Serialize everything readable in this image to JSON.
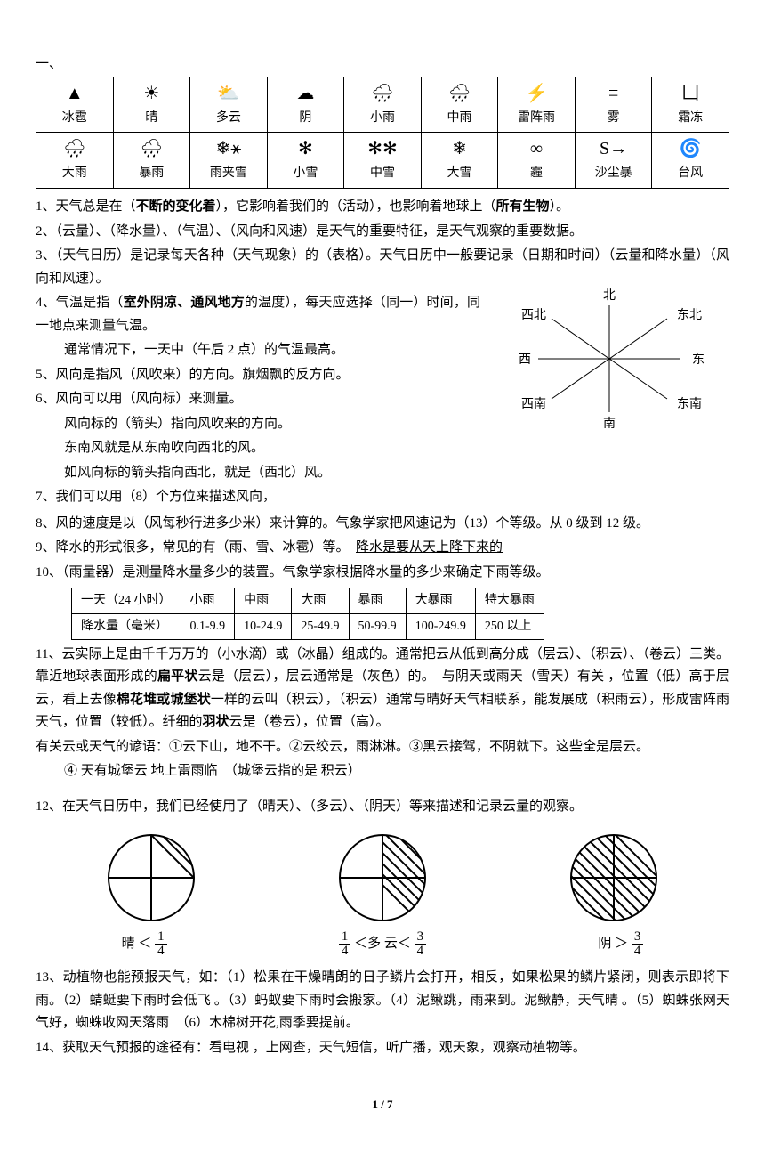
{
  "section_label": "一、",
  "weather_icons": [
    {
      "name": "hail",
      "glyph": "▲",
      "label": "冰雹"
    },
    {
      "name": "sunny",
      "glyph": "☀",
      "label": "晴"
    },
    {
      "name": "cloudy",
      "glyph": "⛅",
      "label": "多云"
    },
    {
      "name": "overcast",
      "glyph": "☁",
      "label": "阴"
    },
    {
      "name": "lightrain",
      "glyph": "🌧",
      "label": "小雨"
    },
    {
      "name": "modrain",
      "glyph": "🌧",
      "label": "中雨"
    },
    {
      "name": "tstorm",
      "glyph": "⚡",
      "label": "雷阵雨"
    },
    {
      "name": "fog",
      "glyph": "≡",
      "label": "雾"
    },
    {
      "name": "frost",
      "glyph": "凵",
      "label": "霜冻"
    },
    {
      "name": "heavyrain",
      "glyph": "🌧",
      "label": "大雨"
    },
    {
      "name": "storm",
      "glyph": "🌧",
      "label": "暴雨"
    },
    {
      "name": "sleet",
      "glyph": "❄⚹",
      "label": "雨夹雪"
    },
    {
      "name": "lightsnow",
      "glyph": "✻",
      "label": "小雪"
    },
    {
      "name": "modsnow",
      "glyph": "✻✻",
      "label": "中雪"
    },
    {
      "name": "heavysnow",
      "glyph": "❄",
      "label": "大雪"
    },
    {
      "name": "haze",
      "glyph": "∞",
      "label": "霾"
    },
    {
      "name": "sand",
      "glyph": "S→",
      "label": "沙尘暴"
    },
    {
      "name": "typhoon",
      "glyph": "🌀",
      "label": "台风"
    }
  ],
  "compass": {
    "n": "北",
    "ne": "东北",
    "e": "东",
    "se": "东南",
    "s": "南",
    "sw": "西南",
    "w": "西",
    "nw": "西北"
  },
  "points": {
    "p1": "1、天气总是在（",
    "p1b": "不断的变化着",
    "p1c": "），它影响着我们的（活动），也影响着地球上（",
    "p1d": "所有生物",
    "p1e": "）。",
    "p2": "2、（云量）、（降水量）、（气温）、（风向和风速）是天气的重要特征，是天气观察的重要数据。",
    "p3": "3、（天气日历）是记录每天各种（天气现象）的（表格）。天气日历中一般要记录（日期和时间）（云量和降水量）（风向和风速）。",
    "p4a": "4、气温是指（",
    "p4b": "室外阴凉、通风地方",
    "p4c": "的温度），每天应选择（同一）时间，同一地点来测量气温。",
    "p4d": "通常情况下，一天中（午后 2 点）的气温最高。",
    "p5": "5、风向是指风（风吹来）的方向。旗烟飘的反方向。",
    "p6a": "6、风向可以用（风向标）来测量。",
    "p6b": "风向标的（箭头）指向风吹来的方向。",
    "p6c": "东南风就是从东南吹向西北的风。",
    "p6d": "如风向标的箭头指向西北，就是（西北）风。",
    "p7": "7、我们可以用（8）个方位来描述风向，",
    "p8": "8、风的速度是以（风每秒行进多少米）来计算的。气象学家把风速记为（13）个等级。从 0 级到 12 级。",
    "p9a": "9、降水的形式很多，常见的有（雨、雪、冰雹）等。　",
    "p9b": "降水是要从天上降下来的",
    "p10": "10、（雨量器）是测量降水量多少的装置。气象学家根据降水量的多少来确定下雨等级。",
    "p11a": "11、云实际上是由千千万万的（小水滴）或（冰晶）组成的。通常把云从低到高分成（层云）、（积云）、（卷云）三类。靠近地球表面形成的",
    "p11b": "扁平状",
    "p11c": "云是（层云），层云通常是（灰色）的。　与阴天或雨天（雪天）有关 ，位置（低）高于层云，看上去像",
    "p11d": "棉花堆或城堡状",
    "p11e": "一样的云叫（积云），（积云）通常与晴好天气相联系，能发展成（积雨云），形成雷阵雨天气，位置（较低）。纤细的",
    "p11f": "羽状",
    "p11g": "云是（卷云），位置（高）。",
    "p11h": "有关云或天气的谚语：①云下山，地不干。②云绞云，雨淋淋。③黑云接驾，不阴就下。这些全是层云。",
    "p11i": "④ 天有城堡云 地上雷雨临　（城堡云指的是 积云）",
    "p12": "12、在天气日历中，我们已经使用了（晴天）、（多云）、（阴天）等来描述和记录云量的观察。",
    "p13": "13、动植物也能预报天气，如：（1）松果在干燥晴朗的日子鳞片会打开，相反，如果松果的鳞片紧闭，则表示即将下雨。（2）蜻蜓要下雨时会低飞 。（3）蚂蚁要下雨时会搬家。（4）泥鳅跳，雨来到。泥鳅静，天气晴 。（5）蜘蛛张网天气好，蜘蛛收网天落雨　（6）木棉树开花,雨季要提前。",
    "p14": "14、获取天气预报的途径有：看电视 ，上网查，天气短信，听广播，观天象，观察动植物等。"
  },
  "rain_table": {
    "headers": [
      "一天（24 小时）",
      "小雨",
      "中雨",
      "大雨",
      "暴雨",
      "大暴雨",
      "特大暴雨"
    ],
    "row_label": "降水量（毫米）",
    "values": [
      "0.1-9.9",
      "10-24.9",
      "25-49.9",
      "50-99.9",
      "100-249.9",
      "250 以上"
    ]
  },
  "cloud_labels": {
    "sunny": {
      "prefix": "晴 ＜",
      "num": "1",
      "den": "4"
    },
    "cloudy_a": {
      "num": "1",
      "den": "4"
    },
    "cloudy_mid": "＜多 云＜",
    "cloudy_b": {
      "num": "3",
      "den": "4"
    },
    "overcast": {
      "prefix": "阴 ＞",
      "num": "3",
      "den": "4"
    }
  },
  "pagenum": "1 / 7"
}
